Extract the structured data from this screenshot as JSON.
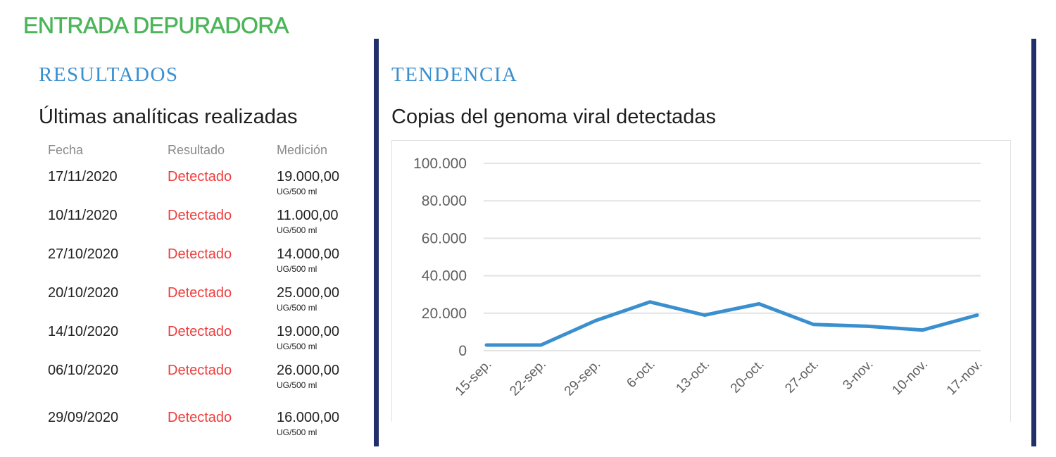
{
  "page": {
    "title": "ENTRADA DEPURADORA",
    "title_color": "#4cb55a",
    "divider_color": "#22306a",
    "heading_color": "#3a8fcf"
  },
  "results": {
    "heading": "RESULTADOS",
    "subheading": "Últimas analíticas realizadas",
    "columns": [
      "Fecha",
      "Resultado",
      "Medición"
    ],
    "result_color": "#ef3d3d",
    "rows": [
      {
        "date": "17/11/2020",
        "result": "Detectado",
        "measure": "19.000,00",
        "unit": "UG/500 ml"
      },
      {
        "date": "10/11/2020",
        "result": "Detectado",
        "measure": "11.000,00",
        "unit": "UG/500 ml"
      },
      {
        "date": "27/10/2020",
        "result": "Detectado",
        "measure": "14.000,00",
        "unit": "UG/500 ml"
      },
      {
        "date": "20/10/2020",
        "result": "Detectado",
        "measure": "25.000,00",
        "unit": "UG/500 ml"
      },
      {
        "date": "14/10/2020",
        "result": "Detectado",
        "measure": "19.000,00",
        "unit": "UG/500 ml"
      },
      {
        "date": "06/10/2020",
        "result": "Detectado",
        "measure": "26.000,00",
        "unit": "UG/500 ml"
      },
      {
        "date": "29/09/2020",
        "result": "Detectado",
        "measure": "16.000,00",
        "unit": "UG/500 ml"
      }
    ]
  },
  "trend": {
    "heading": "TENDENCIA",
    "subheading": "Copias del genoma viral detectadas"
  },
  "chart_data": {
    "type": "line",
    "title": "Copias del genoma viral detectadas",
    "xlabel": "",
    "ylabel": "",
    "categories": [
      "15-sep.",
      "22-sep.",
      "29-sep.",
      "6-oct.",
      "13-oct.",
      "20-oct.",
      "27-oct.",
      "3-nov.",
      "10-nov.",
      "17-nov."
    ],
    "series": [
      {
        "name": "Copias del genoma viral",
        "color": "#3a8fcf",
        "values": [
          3000,
          3000,
          16000,
          26000,
          19000,
          25000,
          14000,
          13000,
          11000,
          19000
        ]
      }
    ],
    "yticks": [
      0,
      20000,
      40000,
      60000,
      80000,
      100000
    ],
    "ytick_labels": [
      "0",
      "20.000",
      "40.000",
      "60.000",
      "80.000",
      "100.000"
    ],
    "ylim": [
      0,
      100000
    ],
    "grid": true,
    "legend": "none"
  }
}
